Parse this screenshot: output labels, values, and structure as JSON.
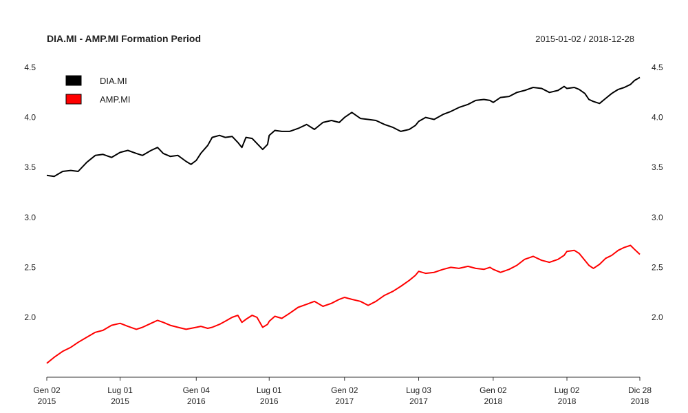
{
  "chart_data": {
    "type": "line",
    "title": "DIA.MI - AMP.MI Formation Period",
    "date_range": "2015-01-02 / 2018-12-28",
    "xlabel": "",
    "ylabel": "",
    "x_range": [
      "2015-01-02",
      "2018-12-28"
    ],
    "ylim": [
      1.4,
      4.7
    ],
    "y_ticks": [
      "2.0",
      "2.5",
      "3.0",
      "3.5",
      "4.0",
      "4.5"
    ],
    "y_tick_values": [
      2.0,
      2.5,
      3.0,
      3.5,
      4.0,
      4.5
    ],
    "x_ticks": [
      {
        "date": "2015-01-02",
        "line1": "Gen 02",
        "line2": "2015"
      },
      {
        "date": "2015-07-01",
        "line1": "Lug 01",
        "line2": "2015"
      },
      {
        "date": "2016-01-04",
        "line1": "Gen 04",
        "line2": "2016"
      },
      {
        "date": "2016-07-01",
        "line1": "Lug 01",
        "line2": "2016"
      },
      {
        "date": "2017-01-02",
        "line1": "Gen 02",
        "line2": "2017"
      },
      {
        "date": "2017-07-03",
        "line1": "Lug 03",
        "line2": "2017"
      },
      {
        "date": "2018-01-02",
        "line1": "Gen 02",
        "line2": "2018"
      },
      {
        "date": "2018-07-02",
        "line1": "Lug 02",
        "line2": "2018"
      },
      {
        "date": "2018-12-28",
        "line1": "Dic 28",
        "line2": "2018"
      }
    ],
    "grid": false,
    "legend_position": "top-left",
    "series": [
      {
        "name": "DIA.MI",
        "color": "#000000",
        "points": [
          [
            "2015-01-02",
            3.42
          ],
          [
            "2015-01-20",
            3.41
          ],
          [
            "2015-02-10",
            3.46
          ],
          [
            "2015-03-02",
            3.47
          ],
          [
            "2015-03-20",
            3.46
          ],
          [
            "2015-04-10",
            3.55
          ],
          [
            "2015-05-01",
            3.62
          ],
          [
            "2015-05-20",
            3.63
          ],
          [
            "2015-06-10",
            3.6
          ],
          [
            "2015-07-01",
            3.65
          ],
          [
            "2015-07-20",
            3.67
          ],
          [
            "2015-08-10",
            3.64
          ],
          [
            "2015-08-25",
            3.62
          ],
          [
            "2015-09-15",
            3.67
          ],
          [
            "2015-10-01",
            3.7
          ],
          [
            "2015-10-15",
            3.64
          ],
          [
            "2015-11-01",
            3.61
          ],
          [
            "2015-11-20",
            3.62
          ],
          [
            "2015-12-10",
            3.56
          ],
          [
            "2015-12-22",
            3.53
          ],
          [
            "2016-01-04",
            3.57
          ],
          [
            "2016-01-15",
            3.64
          ],
          [
            "2016-02-01",
            3.72
          ],
          [
            "2016-02-12",
            3.8
          ],
          [
            "2016-03-01",
            3.82
          ],
          [
            "2016-03-15",
            3.8
          ],
          [
            "2016-04-01",
            3.81
          ],
          [
            "2016-04-15",
            3.75
          ],
          [
            "2016-04-25",
            3.7
          ],
          [
            "2016-05-05",
            3.8
          ],
          [
            "2016-05-20",
            3.79
          ],
          [
            "2016-06-01",
            3.74
          ],
          [
            "2016-06-15",
            3.68
          ],
          [
            "2016-06-27",
            3.73
          ],
          [
            "2016-07-01",
            3.82
          ],
          [
            "2016-07-15",
            3.87
          ],
          [
            "2016-08-01",
            3.86
          ],
          [
            "2016-08-20",
            3.86
          ],
          [
            "2016-09-10",
            3.89
          ],
          [
            "2016-10-01",
            3.93
          ],
          [
            "2016-10-20",
            3.88
          ],
          [
            "2016-11-10",
            3.95
          ],
          [
            "2016-12-01",
            3.97
          ],
          [
            "2016-12-20",
            3.95
          ],
          [
            "2017-01-02",
            4.0
          ],
          [
            "2017-01-20",
            4.05
          ],
          [
            "2017-02-10",
            3.99
          ],
          [
            "2017-03-01",
            3.98
          ],
          [
            "2017-03-20",
            3.97
          ],
          [
            "2017-04-10",
            3.93
          ],
          [
            "2017-05-01",
            3.9
          ],
          [
            "2017-05-20",
            3.86
          ],
          [
            "2017-06-10",
            3.88
          ],
          [
            "2017-06-25",
            3.92
          ],
          [
            "2017-07-03",
            3.96
          ],
          [
            "2017-07-20",
            4.0
          ],
          [
            "2017-08-10",
            3.98
          ],
          [
            "2017-09-01",
            4.03
          ],
          [
            "2017-09-20",
            4.06
          ],
          [
            "2017-10-10",
            4.1
          ],
          [
            "2017-11-01",
            4.13
          ],
          [
            "2017-11-20",
            4.17
          ],
          [
            "2017-12-10",
            4.18
          ],
          [
            "2017-12-25",
            4.17
          ],
          [
            "2018-01-02",
            4.15
          ],
          [
            "2018-01-20",
            4.2
          ],
          [
            "2018-02-10",
            4.21
          ],
          [
            "2018-03-01",
            4.25
          ],
          [
            "2018-03-20",
            4.27
          ],
          [
            "2018-04-10",
            4.3
          ],
          [
            "2018-05-01",
            4.29
          ],
          [
            "2018-05-20",
            4.25
          ],
          [
            "2018-06-10",
            4.27
          ],
          [
            "2018-06-25",
            4.31
          ],
          [
            "2018-07-02",
            4.29
          ],
          [
            "2018-07-20",
            4.3
          ],
          [
            "2018-08-01",
            4.28
          ],
          [
            "2018-08-15",
            4.24
          ],
          [
            "2018-08-25",
            4.18
          ],
          [
            "2018-09-05",
            4.16
          ],
          [
            "2018-09-20",
            4.14
          ],
          [
            "2018-10-05",
            4.19
          ],
          [
            "2018-10-20",
            4.24
          ],
          [
            "2018-11-05",
            4.28
          ],
          [
            "2018-11-20",
            4.3
          ],
          [
            "2018-12-05",
            4.33
          ],
          [
            "2018-12-15",
            4.37
          ],
          [
            "2018-12-28",
            4.4
          ]
        ]
      },
      {
        "name": "AMP.MI",
        "color": "#ff0000",
        "points": [
          [
            "2015-01-02",
            1.54
          ],
          [
            "2015-01-20",
            1.6
          ],
          [
            "2015-02-10",
            1.66
          ],
          [
            "2015-03-02",
            1.7
          ],
          [
            "2015-03-20",
            1.75
          ],
          [
            "2015-04-10",
            1.8
          ],
          [
            "2015-05-01",
            1.85
          ],
          [
            "2015-05-20",
            1.87
          ],
          [
            "2015-06-10",
            1.92
          ],
          [
            "2015-07-01",
            1.94
          ],
          [
            "2015-07-20",
            1.91
          ],
          [
            "2015-08-10",
            1.88
          ],
          [
            "2015-08-25",
            1.9
          ],
          [
            "2015-09-15",
            1.94
          ],
          [
            "2015-10-01",
            1.97
          ],
          [
            "2015-10-15",
            1.95
          ],
          [
            "2015-11-01",
            1.92
          ],
          [
            "2015-11-20",
            1.9
          ],
          [
            "2015-12-10",
            1.88
          ],
          [
            "2015-12-22",
            1.89
          ],
          [
            "2016-01-04",
            1.9
          ],
          [
            "2016-01-15",
            1.91
          ],
          [
            "2016-02-01",
            1.89
          ],
          [
            "2016-02-12",
            1.9
          ],
          [
            "2016-03-01",
            1.93
          ],
          [
            "2016-03-15",
            1.96
          ],
          [
            "2016-04-01",
            2.0
          ],
          [
            "2016-04-15",
            2.02
          ],
          [
            "2016-04-25",
            1.95
          ],
          [
            "2016-05-05",
            1.98
          ],
          [
            "2016-05-20",
            2.02
          ],
          [
            "2016-06-01",
            2.0
          ],
          [
            "2016-06-15",
            1.9
          ],
          [
            "2016-06-27",
            1.93
          ],
          [
            "2016-07-01",
            1.96
          ],
          [
            "2016-07-15",
            2.01
          ],
          [
            "2016-08-01",
            1.99
          ],
          [
            "2016-08-20",
            2.04
          ],
          [
            "2016-09-10",
            2.1
          ],
          [
            "2016-10-01",
            2.13
          ],
          [
            "2016-10-20",
            2.16
          ],
          [
            "2016-11-10",
            2.11
          ],
          [
            "2016-12-01",
            2.14
          ],
          [
            "2016-12-20",
            2.18
          ],
          [
            "2017-01-02",
            2.2
          ],
          [
            "2017-01-20",
            2.18
          ],
          [
            "2017-02-10",
            2.16
          ],
          [
            "2017-03-01",
            2.12
          ],
          [
            "2017-03-20",
            2.16
          ],
          [
            "2017-04-10",
            2.22
          ],
          [
            "2017-05-01",
            2.26
          ],
          [
            "2017-05-20",
            2.31
          ],
          [
            "2017-06-10",
            2.37
          ],
          [
            "2017-06-25",
            2.42
          ],
          [
            "2017-07-03",
            2.46
          ],
          [
            "2017-07-20",
            2.44
          ],
          [
            "2017-08-10",
            2.45
          ],
          [
            "2017-09-01",
            2.48
          ],
          [
            "2017-09-20",
            2.5
          ],
          [
            "2017-10-10",
            2.49
          ],
          [
            "2017-11-01",
            2.51
          ],
          [
            "2017-11-20",
            2.49
          ],
          [
            "2017-12-10",
            2.48
          ],
          [
            "2017-12-25",
            2.5
          ],
          [
            "2018-01-02",
            2.48
          ],
          [
            "2018-01-20",
            2.45
          ],
          [
            "2018-02-10",
            2.48
          ],
          [
            "2018-03-01",
            2.52
          ],
          [
            "2018-03-20",
            2.58
          ],
          [
            "2018-04-10",
            2.61
          ],
          [
            "2018-05-01",
            2.57
          ],
          [
            "2018-05-20",
            2.55
          ],
          [
            "2018-06-10",
            2.58
          ],
          [
            "2018-06-25",
            2.62
          ],
          [
            "2018-07-02",
            2.66
          ],
          [
            "2018-07-20",
            2.67
          ],
          [
            "2018-08-01",
            2.64
          ],
          [
            "2018-08-15",
            2.57
          ],
          [
            "2018-08-25",
            2.52
          ],
          [
            "2018-09-05",
            2.49
          ],
          [
            "2018-09-20",
            2.53
          ],
          [
            "2018-10-05",
            2.59
          ],
          [
            "2018-10-20",
            2.62
          ],
          [
            "2018-11-05",
            2.67
          ],
          [
            "2018-11-20",
            2.7
          ],
          [
            "2018-12-05",
            2.72
          ],
          [
            "2018-12-15",
            2.68
          ],
          [
            "2018-12-28",
            2.63
          ]
        ]
      }
    ]
  }
}
